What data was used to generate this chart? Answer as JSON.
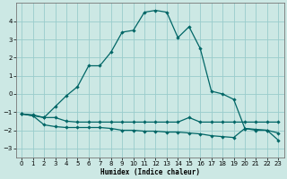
{
  "xlabel": "Humidex (Indice chaleur)",
  "bg_color": "#cce8e4",
  "grid_color": "#99cccc",
  "line_color": "#006666",
  "xlim": [
    -0.5,
    23.5
  ],
  "ylim": [
    -3.5,
    5.0
  ],
  "yticks": [
    -3,
    -2,
    -1,
    0,
    1,
    2,
    3,
    4
  ],
  "xticks": [
    0,
    1,
    2,
    3,
    4,
    5,
    6,
    7,
    8,
    9,
    10,
    11,
    12,
    13,
    14,
    15,
    16,
    17,
    18,
    19,
    20,
    21,
    22,
    23
  ],
  "curve_main_x": [
    0,
    1,
    2,
    3,
    4,
    5,
    6,
    7,
    8,
    9,
    10,
    11,
    12,
    13,
    14,
    15,
    16,
    17,
    18,
    19,
    20,
    21,
    22,
    23
  ],
  "curve_main_y": [
    -1.1,
    -1.2,
    -1.3,
    -0.7,
    -0.1,
    0.4,
    1.55,
    1.55,
    2.3,
    3.4,
    3.5,
    4.5,
    4.6,
    4.5,
    3.1,
    3.7,
    2.5,
    0.15,
    0.0,
    -0.3,
    -1.9,
    -2.0,
    -2.0,
    -2.15
  ],
  "curve_mid_x": [
    0,
    1,
    2,
    3,
    4,
    5,
    6,
    7,
    8,
    9,
    10,
    11,
    12,
    13,
    14,
    15,
    16,
    17,
    18,
    19,
    20,
    21,
    22,
    23
  ],
  "curve_mid_y": [
    -1.1,
    -1.15,
    -1.3,
    -1.3,
    -1.5,
    -1.55,
    -1.55,
    -1.55,
    -1.55,
    -1.55,
    -1.55,
    -1.55,
    -1.55,
    -1.55,
    -1.55,
    -1.3,
    -1.55,
    -1.55,
    -1.55,
    -1.55,
    -1.55,
    -1.55,
    -1.55,
    -1.55
  ],
  "curve_low_x": [
    0,
    1,
    2,
    3,
    4,
    5,
    6,
    7,
    8,
    9,
    10,
    11,
    12,
    13,
    14,
    15,
    16,
    17,
    18,
    19,
    20,
    21,
    22,
    23
  ],
  "curve_low_y": [
    -1.1,
    -1.2,
    -1.7,
    -1.8,
    -1.85,
    -1.85,
    -1.85,
    -1.85,
    -1.9,
    -2.0,
    -2.0,
    -2.05,
    -2.05,
    -2.1,
    -2.1,
    -2.15,
    -2.2,
    -2.3,
    -2.35,
    -2.4,
    -1.9,
    -1.95,
    -2.0,
    -2.55
  ]
}
